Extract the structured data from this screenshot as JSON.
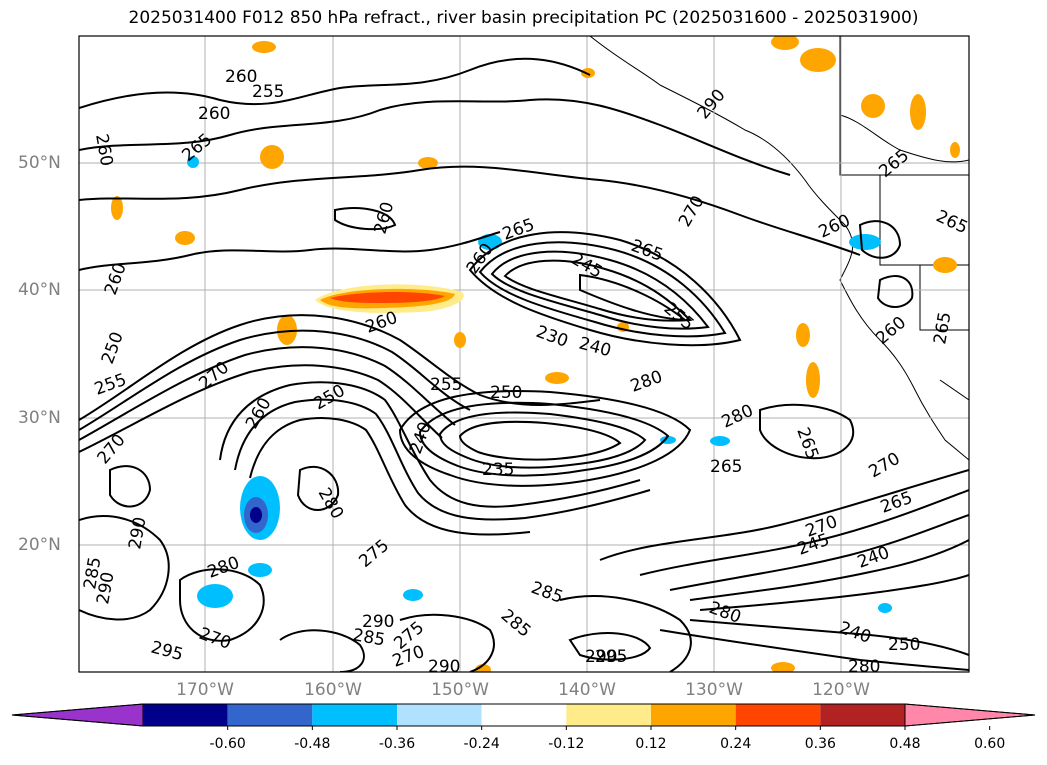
{
  "title": "2025031400 F012 850 hPa refract., river basin precipitation PC (2025031600 - 2025031900)",
  "lat_labels": [
    "50°N",
    "40°N",
    "30°N",
    "20°N"
  ],
  "lon_labels": [
    "170°W",
    "160°W",
    "150°W",
    "140°W",
    "130°W",
    "120°W"
  ],
  "contour_labels": [
    "260",
    "255",
    "260",
    "260",
    "265",
    "265",
    "260",
    "265",
    "260",
    "270",
    "290",
    "265",
    "260",
    "265",
    "260",
    "260",
    "245",
    "265",
    "255",
    "260",
    "250",
    "255",
    "265",
    "260",
    "230",
    "240",
    "270",
    "280",
    "270",
    "260",
    "250",
    "255",
    "250",
    "240",
    "235",
    "245",
    "280",
    "265",
    "265",
    "270",
    "275",
    "280",
    "290",
    "285",
    "290",
    "275",
    "270",
    "280",
    "265",
    "250",
    "245",
    "240",
    "265",
    "280",
    "285",
    "240",
    "250",
    "280",
    "285",
    "295",
    "270",
    "290",
    "285",
    "290",
    "275",
    "270",
    "290",
    "295",
    "270",
    "280",
    "265"
  ],
  "colorbar": {
    "colors": [
      "#9933cc",
      "#00008b",
      "#3366cc",
      "#00bfff",
      "#b0e2ff",
      "#ffffff",
      "#ffeb8a",
      "#ffa500",
      "#ff4500",
      "#b22222",
      "#ff88aa"
    ],
    "tick_labels": [
      "-0.60",
      "-0.48",
      "-0.36",
      "-0.24",
      "-0.12",
      "0.12",
      "0.24",
      "0.36",
      "0.48",
      "0.60"
    ]
  }
}
